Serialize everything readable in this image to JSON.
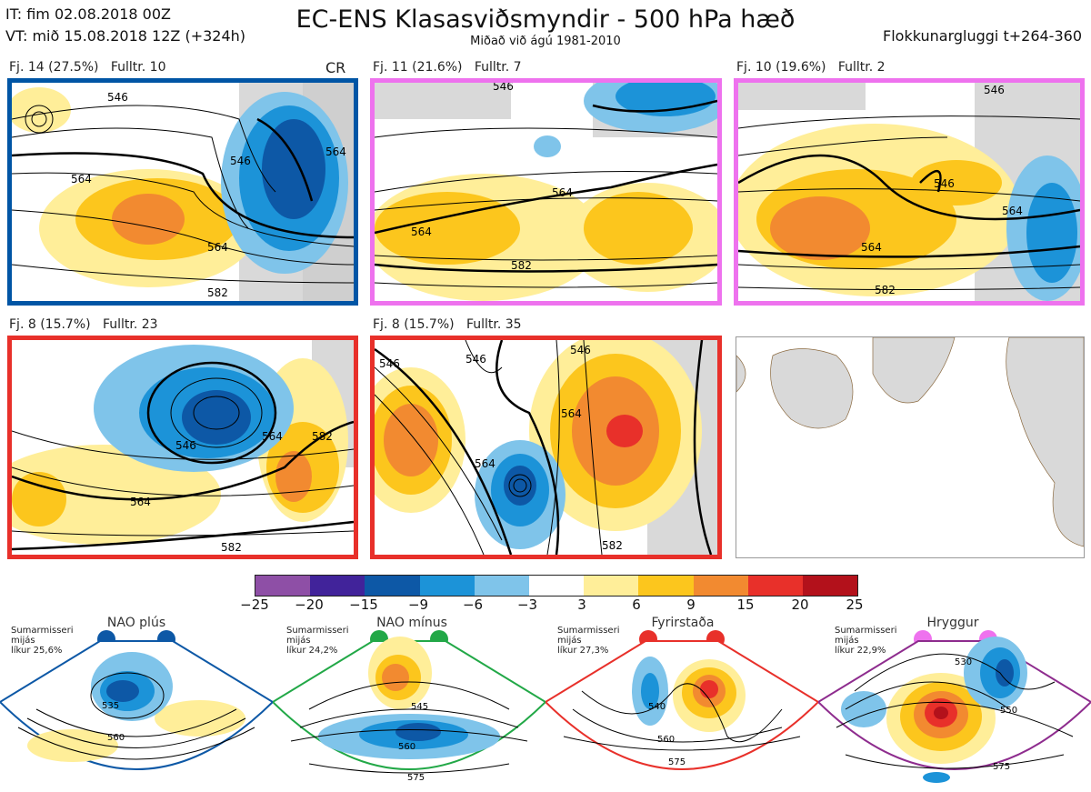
{
  "header": {
    "it": "IT: fim 02.08.2018 00Z",
    "vt": "VT: mið 15.08.2018 12Z  (+324h)",
    "title": "EC-ENS Klasasviðsmyndir - 500 hPa hæð",
    "subtitle": "Miðað við ágú 1981-2010",
    "window": "Flokkunargluggi t+264-360"
  },
  "panels": [
    {
      "label": "Fj. 14 (27.5%)   Fulltr. 10",
      "extra": "CR",
      "border": "#0055a5",
      "contours": [
        "546",
        "564",
        "564",
        "582",
        "546",
        "564"
      ]
    },
    {
      "label": "Fj. 11 (21.6%)   Fulltr. 7",
      "border": "#ee72ee",
      "contours": [
        "546",
        "564",
        "564",
        "582"
      ]
    },
    {
      "label": "Fj. 10 (19.6%)   Fulltr. 2",
      "border": "#ee72ee",
      "contours": [
        "546",
        "546",
        "564",
        "564",
        "582"
      ]
    },
    {
      "label": "Fj. 8 (15.7%)   Fulltr. 23",
      "border": "#e8302a",
      "contours": [
        "546",
        "564",
        "582",
        "564",
        "582"
      ]
    },
    {
      "label": "Fj. 8 (15.7%)   Fulltr. 35",
      "border": "#e8302a",
      "contours": [
        "546",
        "564",
        "564",
        "546",
        "546",
        "582"
      ]
    },
    {
      "label": "",
      "border": "#999999",
      "contours": []
    }
  ],
  "colorbar": {
    "ticks": [
      "−25",
      "−20",
      "−15",
      "−9",
      "−6",
      "−3",
      "3",
      "6",
      "9",
      "15",
      "20",
      "25"
    ],
    "colors": [
      "#8e4fa6",
      "#41239a",
      "#0d58a6",
      "#1c93d8",
      "#7fc4ea",
      "#ffffff",
      "#ffee99",
      "#fcc61d",
      "#f28a30",
      "#e8302a",
      "#b3111b"
    ]
  },
  "regimes": [
    {
      "name": "NAO plús",
      "season": "Sumarmisseri",
      "period": "mijás",
      "prob": "líkur 25,6%",
      "color": "#0d58a6",
      "contours": [
        "535",
        "560"
      ]
    },
    {
      "name": "NAO mínus",
      "season": "Sumarmisseri",
      "period": "mijás",
      "prob": "líkur 24,2%",
      "color": "#22a847",
      "contours": [
        "545",
        "560",
        "575"
      ]
    },
    {
      "name": "Fyrirstaða",
      "season": "Sumarmisseri",
      "period": "mijás",
      "prob": "líkur 27,3%",
      "color": "#e8302a",
      "contours": [
        "540",
        "560",
        "575"
      ]
    },
    {
      "name": "Hryggur",
      "season": "Sumarmisseri",
      "period": "mijás",
      "prob": "líkur 22,9%",
      "color": "#ee72ee",
      "contours": [
        "530",
        "550",
        "575"
      ]
    }
  ]
}
